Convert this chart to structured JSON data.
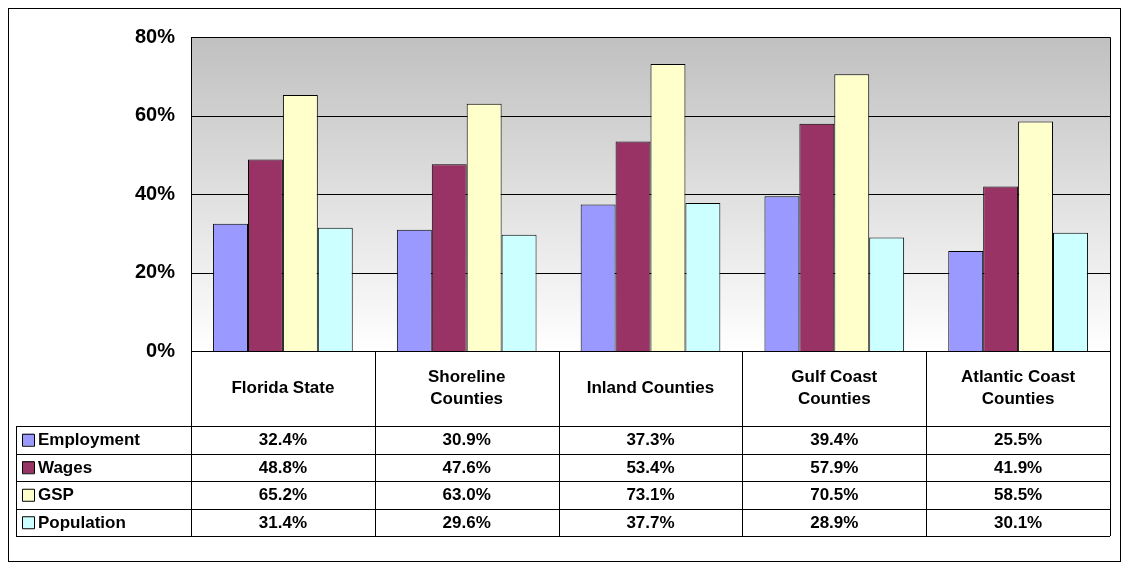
{
  "chart_data": {
    "type": "bar",
    "categories": [
      "Florida State",
      "Shoreline Counties",
      "Inland Counties",
      "Gulf Coast Counties",
      "Atlantic Coast Counties"
    ],
    "series": [
      {
        "name": "Employment",
        "color": "#9999ff",
        "values": [
          32.4,
          30.9,
          37.3,
          39.4,
          25.5
        ],
        "value_labels": [
          "32.4%",
          "30.9%",
          "37.3%",
          "39.4%",
          "25.5%"
        ]
      },
      {
        "name": "Wages",
        "color": "#993366",
        "values": [
          48.8,
          47.6,
          53.4,
          57.9,
          41.9
        ],
        "value_labels": [
          "48.8%",
          "47.6%",
          "53.4%",
          "57.9%",
          "41.9%"
        ]
      },
      {
        "name": "GSP",
        "color": "#ffffcc",
        "values": [
          65.2,
          63.0,
          73.1,
          70.5,
          58.5
        ],
        "value_labels": [
          "65.2%",
          "63.0%",
          "73.1%",
          "70.5%",
          "58.5%"
        ]
      },
      {
        "name": "Population",
        "color": "#ccffff",
        "values": [
          31.4,
          29.6,
          37.7,
          28.9,
          30.1
        ],
        "value_labels": [
          "31.4%",
          "29.6%",
          "37.7%",
          "28.9%",
          "30.1%"
        ]
      }
    ],
    "ylim": [
      0,
      80
    ],
    "yticks": [
      {
        "value": 0,
        "label": "0%"
      },
      {
        "value": 20,
        "label": "20%"
      },
      {
        "value": 40,
        "label": "40%"
      },
      {
        "value": 60,
        "label": "60%"
      },
      {
        "value": 80,
        "label": "80%"
      }
    ],
    "grid": "y",
    "legend": "bottom left"
  }
}
